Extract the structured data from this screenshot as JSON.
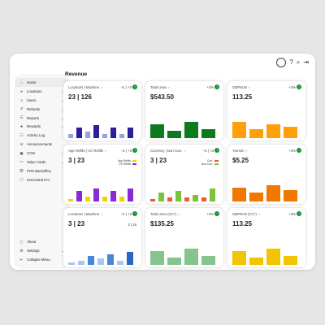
{
  "topbar": {
    "icons": [
      "avatar",
      "help-icon",
      "search-icon",
      "logout-icon"
    ]
  },
  "sidebar": {
    "items": [
      {
        "label": "Home",
        "icon": "home-icon",
        "chevron": false,
        "active": true
      },
      {
        "label": "Locations",
        "icon": "location-icon",
        "chevron": true
      },
      {
        "label": "Users",
        "icon": "user-icon",
        "chevron": true
      },
      {
        "label": "Refunds",
        "icon": "refund-icon",
        "chevron": true
      },
      {
        "label": "Reports",
        "icon": "report-icon",
        "chevron": true
      },
      {
        "label": "Rewards",
        "icon": "reward-icon",
        "chevron": true
      },
      {
        "label": "Activity Log",
        "icon": "log-icon",
        "chevron": false
      },
      {
        "label": "Announcements",
        "icon": "announcement-icon",
        "chevron": false
      },
      {
        "label": "CCM",
        "icon": "ccm-icon",
        "chevron": true
      },
      {
        "label": "Value Cards",
        "icon": "card-icon",
        "chevron": true
      },
      {
        "label": "POS Backoffice",
        "icon": "pos-icon",
        "chevron": false
      },
      {
        "label": "KioCentral Pro",
        "icon": "kiosk-icon",
        "chevron": false
      }
    ],
    "bottom": [
      {
        "label": "About",
        "icon": "info-icon",
        "chevron": false
      },
      {
        "label": "Settings",
        "icon": "settings-icon",
        "chevron": true
      },
      {
        "label": "Collapse Menu",
        "icon": "collapse-icon",
        "chevron": false
      }
    ]
  },
  "content": {
    "title": "Revenue"
  },
  "cards": [
    {
      "title": "Locations | Machine",
      "badge": "+1 | +3",
      "value": "23 | 126",
      "badge_color": "#1a8f3c",
      "chart_data": {
        "type": "bar",
        "values": [
          2,
          5,
          3,
          6,
          2,
          5,
          2,
          5
        ],
        "colors": [
          "#8fa4e0",
          "#2b1f9e",
          "#8fa4e0",
          "#2b1f9e",
          "#8fa4e0",
          "#2b1f9e",
          "#8fa4e0",
          "#2b1f9e"
        ]
      }
    },
    {
      "title": "Total Uses",
      "badge": "+2%",
      "value": "$543.50",
      "badge_color": "#1a8f3c",
      "chart_data": {
        "type": "bar",
        "values": [
          6,
          3,
          7,
          4
        ],
        "colors": [
          "#0d7a1e",
          "#0d7a1e",
          "#0d7a1e",
          "#0d7a1e"
        ]
      }
    },
    {
      "title": "GBPM.W",
      "badge": "+2%",
      "value": "113.25",
      "badge_color": "#1a8f3c",
      "chart_data": {
        "type": "bar",
        "values": [
          7,
          4,
          6,
          5
        ],
        "colors": [
          "#ff9f0a",
          "#ff9f0a",
          "#ff9f0a",
          "#ff9f0a"
        ]
      }
    },
    {
      "title": "App Refills | VC Refills",
      "badge": "+1 | +3",
      "value": "3 | 23",
      "badge_color": "#1a8f3c",
      "legend": [
        {
          "label": "App Refills",
          "color": "#f7d000"
        },
        {
          "label": "VC Refills",
          "color": "#8a2ad6"
        }
      ],
      "chart_data": {
        "type": "bar",
        "values": [
          1,
          4,
          2,
          5,
          2,
          4,
          2,
          5
        ],
        "colors": [
          "#f7d000",
          "#8a2ad6",
          "#f7d000",
          "#8a2ad6",
          "#f7d000",
          "#8a2ad6",
          "#f7d000",
          "#8a2ad6"
        ]
      }
    },
    {
      "title": "Currency | Non Curr.",
      "badge": "+1 | +3",
      "value": "3 | 23",
      "badge_color": "#1a8f3c",
      "legend": [
        {
          "label": "Curr.",
          "color": "#f05a28"
        },
        {
          "label": "Non Curr.",
          "color": "#7cc23a"
        }
      ],
      "chart_data": {
        "type": "bar",
        "values": [
          1,
          4,
          2,
          5,
          2,
          3,
          2,
          6
        ],
        "colors": [
          "#f05a28",
          "#7cc23a",
          "#f05a28",
          "#7cc23a",
          "#f05a28",
          "#7cc23a",
          "#f05a28",
          "#7cc23a"
        ]
      }
    },
    {
      "title": "TurnsD",
      "badge": "+2%",
      "value": "$5.25",
      "badge_color": "#1a8f3c",
      "chart_data": {
        "type": "bar",
        "values": [
          6,
          4,
          7,
          5
        ],
        "colors": [
          "#f07800",
          "#f07800",
          "#f07800",
          "#f07800"
        ]
      }
    },
    {
      "title": "Locations | Machine",
      "badge": "+1 | +3",
      "value": "3 | 23",
      "sub": "2 | 16",
      "badge_color": "#1a8f3c",
      "chart_data": {
        "type": "bar",
        "values": [
          1,
          2,
          4,
          3,
          5,
          2,
          6
        ],
        "colors": [
          "#a8c8f0",
          "#a8c8f0",
          "#4a86d6",
          "#a8c8f0",
          "#4a86d6",
          "#a8c8f0",
          "#2a66c6"
        ]
      }
    },
    {
      "title": "Total Uses (CC*)",
      "badge": "+2%",
      "value": "$135.25",
      "badge_color": "#1a8f3c",
      "chart_data": {
        "type": "bar",
        "values": [
          6,
          3,
          7,
          4
        ],
        "colors": [
          "#86c48e",
          "#86c48e",
          "#86c48e",
          "#86c48e"
        ]
      }
    },
    {
      "title": "GBPM.W (CC*)",
      "badge": "+2%",
      "value": "113.25",
      "badge_color": "#1a8f3c",
      "chart_data": {
        "type": "bar",
        "values": [
          6,
          3,
          7,
          4
        ],
        "colors": [
          "#f2c500",
          "#f2c500",
          "#f2c500",
          "#f2c500"
        ]
      }
    }
  ]
}
